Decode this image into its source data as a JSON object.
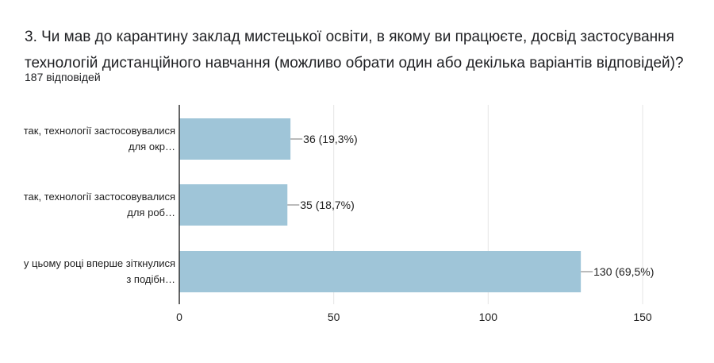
{
  "question": {
    "title": "3. Чи мав до карантину заклад мистецької освіти, в якому ви працюєте, досвід застосування технологій дистанційного навчання (можливо обрати один або декілька варіантів відповідей)?",
    "responses": "187 відповідей"
  },
  "colors": {
    "bar": "#9fc5d8",
    "grid": "#e5e5e5",
    "axis": "#333333"
  },
  "chart_data": {
    "type": "bar",
    "orientation": "horizontal",
    "categories": [
      [
        "так, технології застосовувалися",
        "для окр…"
      ],
      [
        "так, технології застосовувалися",
        "для роб…"
      ],
      [
        "у цьому році вперше зіткнулися",
        "з подібн…"
      ]
    ],
    "values": [
      36,
      35,
      130
    ],
    "labels": [
      "36 (19,3%)",
      "35 (18,7%)",
      "130 (69,5%)"
    ],
    "xlim": [
      0,
      150
    ],
    "xticks": [
      0,
      50,
      100,
      150
    ],
    "grid": true
  }
}
